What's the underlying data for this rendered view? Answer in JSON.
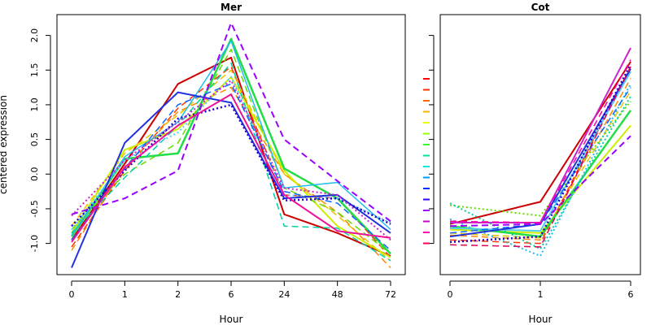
{
  "ylabel": "centered expression",
  "legend": {
    "placement": "left of right panel",
    "colors": [
      "#ff0000",
      "#ff3300",
      "#ff6600",
      "#ffb300",
      "#e6ff00",
      "#99ff00",
      "#33ff33",
      "#00e699",
      "#00e6e6",
      "#0099ff",
      "#0033ff",
      "#3300ff",
      "#9900ff",
      "#cc00cc",
      "#ff00aa",
      "#ff0055"
    ],
    "styles": [
      "dashed",
      "dashed",
      "dashed",
      "dashed",
      "dashed",
      "dashed",
      "dashed",
      "dashed",
      "dashed",
      "dashed",
      "dashed",
      "dashed",
      "dashed",
      "dashed",
      "dashed",
      "dashed"
    ]
  },
  "chart_data": [
    {
      "type": "line",
      "title": "Mer",
      "xlabel": "Hour",
      "ylabel": "centered expression",
      "categories": [
        "0",
        "1",
        "2",
        "6",
        "24",
        "48",
        "72"
      ],
      "ylim": [
        -1.45,
        2.3
      ],
      "yticks": [
        -1.0,
        -0.5,
        0.0,
        0.5,
        1.0,
        1.5,
        2.0
      ],
      "ytick_labels": [
        "-1.0",
        "-0.5",
        "0.0",
        "0.5",
        "1.0",
        "1.5",
        "2.0"
      ],
      "grid": false,
      "series": [
        {
          "color": "#cc0000",
          "dash": "solid",
          "width": 2,
          "values": [
            -0.95,
            0.15,
            1.3,
            1.68,
            -0.58,
            -0.85,
            -1.18
          ]
        },
        {
          "color": "#ff3300",
          "dash": "dashed",
          "width": 1.5,
          "values": [
            -1.05,
            0.05,
            0.95,
            1.55,
            -0.3,
            -0.35,
            -1.2
          ]
        },
        {
          "color": "#ff8800",
          "dash": "dashed",
          "width": 1.5,
          "values": [
            -1.1,
            0.1,
            0.9,
            1.25,
            0.0,
            -0.55,
            -1.35
          ]
        },
        {
          "color": "#e6c300",
          "dash": "dashed",
          "width": 1.5,
          "values": [
            -0.75,
            0.3,
            0.85,
            1.5,
            0.0,
            -0.6,
            -1.25
          ]
        },
        {
          "color": "#ccee00",
          "dash": "solid",
          "width": 2,
          "values": [
            -0.85,
            0.35,
            0.65,
            1.4,
            0.05,
            -0.75,
            -1.2
          ]
        },
        {
          "color": "#66dd00",
          "dash": "dashed",
          "width": 1.5,
          "values": [
            -0.8,
            0.0,
            0.45,
            1.8,
            -0.2,
            -0.55,
            -1.15
          ]
        },
        {
          "color": "#22dd44",
          "dash": "solid",
          "width": 2.5,
          "values": [
            -0.9,
            0.22,
            0.3,
            1.95,
            0.08,
            -0.35,
            -1.15
          ]
        },
        {
          "color": "#00d0a0",
          "dash": "dashed",
          "width": 1.5,
          "values": [
            -0.85,
            -0.05,
            0.7,
            1.6,
            -0.75,
            -0.78,
            -1.25
          ]
        },
        {
          "color": "#22bbee",
          "dash": "solid",
          "width": 1.5,
          "values": [
            -0.88,
            0.25,
            0.75,
            1.92,
            -0.2,
            -0.12,
            -0.8
          ]
        },
        {
          "color": "#55ccee",
          "dash": "dotted",
          "width": 2,
          "values": [
            -0.8,
            0.2,
            0.6,
            1.4,
            -0.3,
            -0.35,
            -0.7
          ]
        },
        {
          "color": "#1166ff",
          "dash": "dashed",
          "width": 1.5,
          "values": [
            -0.95,
            0.08,
            1.0,
            1.3,
            -0.25,
            -0.42,
            -1.1
          ]
        },
        {
          "color": "#2233dd",
          "dash": "solid",
          "width": 2,
          "values": [
            -1.35,
            0.45,
            1.18,
            1.03,
            -0.35,
            -0.3,
            -0.85
          ]
        },
        {
          "color": "#2200cc",
          "dash": "dotted",
          "width": 2.5,
          "values": [
            -0.75,
            0.05,
            0.8,
            1.0,
            -0.38,
            -0.35,
            -0.72
          ]
        },
        {
          "color": "#9900ff",
          "dash": "dashed",
          "width": 2,
          "values": [
            -0.58,
            -0.35,
            0.05,
            2.18,
            0.5,
            -0.1,
            -0.68
          ]
        },
        {
          "color": "#cc22cc",
          "dash": "dotted",
          "width": 2,
          "values": [
            -0.6,
            0.2,
            0.75,
            1.35,
            -0.2,
            -0.3,
            -0.95
          ]
        },
        {
          "color": "#ee1199",
          "dash": "solid",
          "width": 2,
          "values": [
            -0.98,
            0.1,
            0.7,
            1.15,
            -0.3,
            -0.82,
            -0.92
          ]
        }
      ]
    },
    {
      "type": "line",
      "title": "Cot",
      "xlabel": "Hour",
      "categories": [
        "0",
        "1",
        "6"
      ],
      "ylim": [
        -1.45,
        2.3
      ],
      "series": [
        {
          "color": "#cc0000",
          "dash": "solid",
          "width": 2,
          "values": [
            -0.72,
            -0.4,
            1.62
          ]
        },
        {
          "color": "#ff3300",
          "dash": "dashed",
          "width": 1.5,
          "values": [
            -0.95,
            -1.0,
            1.55
          ]
        },
        {
          "color": "#ff8800",
          "dash": "dashed",
          "width": 1.5,
          "values": [
            -0.88,
            -0.95,
            1.38
          ]
        },
        {
          "color": "#e6c300",
          "dash": "dashed",
          "width": 1.5,
          "values": [
            -0.85,
            -0.92,
            1.2
          ]
        },
        {
          "color": "#ccee00",
          "dash": "solid",
          "width": 2,
          "values": [
            -0.8,
            -0.85,
            0.7
          ]
        },
        {
          "color": "#66dd00",
          "dash": "dotted",
          "width": 2,
          "values": [
            -0.45,
            -0.6,
            1.05
          ]
        },
        {
          "color": "#22dd44",
          "dash": "solid",
          "width": 2.5,
          "values": [
            -0.75,
            -0.9,
            0.92
          ]
        },
        {
          "color": "#00d0a0",
          "dash": "dotted",
          "width": 2,
          "values": [
            -0.42,
            -1.08,
            1.12
          ]
        },
        {
          "color": "#22bbee",
          "dash": "dotted",
          "width": 2,
          "values": [
            -0.65,
            -1.18,
            1.3
          ]
        },
        {
          "color": "#55ccee",
          "dash": "solid",
          "width": 2,
          "values": [
            -0.78,
            -0.82,
            1.48
          ]
        },
        {
          "color": "#1166ff",
          "dash": "dashed",
          "width": 1.5,
          "values": [
            -0.85,
            -0.72,
            1.25
          ]
        },
        {
          "color": "#2233dd",
          "dash": "solid",
          "width": 2,
          "values": [
            -0.9,
            -0.72,
            1.52
          ]
        },
        {
          "color": "#2200cc",
          "dash": "dotted",
          "width": 2.5,
          "values": [
            -0.98,
            -0.9,
            1.58
          ]
        },
        {
          "color": "#9900ff",
          "dash": "dashed",
          "width": 2,
          "values": [
            -0.75,
            -0.72,
            0.55
          ]
        },
        {
          "color": "#cc22cc",
          "dash": "solid",
          "width": 2,
          "values": [
            -0.7,
            -0.7,
            1.82
          ]
        },
        {
          "color": "#ff00aa",
          "dash": "dashed",
          "width": 1.5,
          "values": [
            -0.68,
            -0.7,
            1.65
          ]
        },
        {
          "color": "#dd0055",
          "dash": "dashed",
          "width": 1.5,
          "values": [
            -1.02,
            -1.05,
            1.55
          ]
        }
      ]
    }
  ]
}
